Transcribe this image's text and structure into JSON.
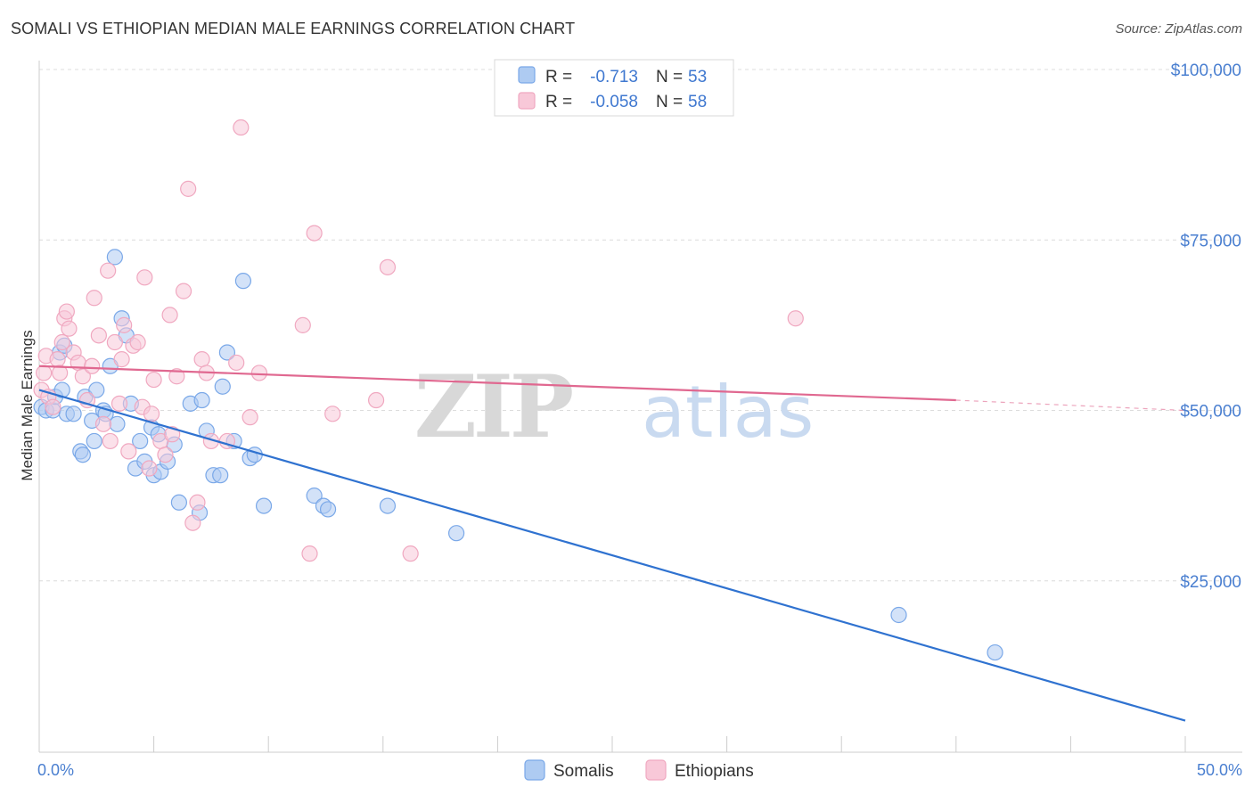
{
  "title": "SOMALI VS ETHIOPIAN MEDIAN MALE EARNINGS CORRELATION CHART",
  "source": "Source: ZipAtlas.com",
  "watermark": {
    "zip": "ZIP",
    "atlas": "atlas"
  },
  "chart_data": {
    "type": "scatter",
    "title": "SOMALI VS ETHIOPIAN MEDIAN MALE EARNINGS CORRELATION CHART",
    "xlabel": "",
    "ylabel": "Median Male Earnings",
    "xlim": [
      0,
      50
    ],
    "ylim": [
      0,
      105000
    ],
    "x_tick_labels": [
      "0.0%",
      "50.0%"
    ],
    "y_ticks": [
      25000,
      50000,
      75000,
      100000
    ],
    "y_tick_labels": [
      "$25,000",
      "$50,000",
      "$75,000",
      "$100,000"
    ],
    "grid": true,
    "legend": {
      "position": "top-center",
      "entries": [
        {
          "r_label": "R =",
          "r_value": "-0.713",
          "n_label": "N =",
          "n_value": "53"
        },
        {
          "r_label": "R =",
          "r_value": "-0.058",
          "n_label": "N =",
          "n_value": "58"
        }
      ]
    },
    "series": [
      {
        "name": "Somalis",
        "color": "#7aa8e8",
        "fill": "#aecbf2",
        "line_color": "#2f72d0",
        "trend": {
          "x": [
            0,
            50
          ],
          "y": [
            53000,
            4500
          ]
        },
        "points": [
          [
            0.1,
            50500
          ],
          [
            0.3,
            50000
          ],
          [
            0.6,
            50000
          ],
          [
            0.7,
            52000
          ],
          [
            0.9,
            58500
          ],
          [
            1.0,
            53000
          ],
          [
            1.1,
            59500
          ],
          [
            1.2,
            49500
          ],
          [
            1.5,
            49500
          ],
          [
            1.8,
            44000
          ],
          [
            1.9,
            43500
          ],
          [
            2.0,
            52000
          ],
          [
            2.3,
            48500
          ],
          [
            2.4,
            45500
          ],
          [
            2.5,
            53000
          ],
          [
            2.8,
            50000
          ],
          [
            2.9,
            49500
          ],
          [
            3.1,
            56500
          ],
          [
            3.3,
            72500
          ],
          [
            3.4,
            48000
          ],
          [
            3.6,
            63500
          ],
          [
            3.8,
            61000
          ],
          [
            4.0,
            51000
          ],
          [
            4.2,
            41500
          ],
          [
            4.4,
            45500
          ],
          [
            4.6,
            42500
          ],
          [
            4.9,
            47500
          ],
          [
            5.0,
            40500
          ],
          [
            5.2,
            46500
          ],
          [
            5.3,
            41000
          ],
          [
            5.6,
            42500
          ],
          [
            5.9,
            45000
          ],
          [
            6.1,
            36500
          ],
          [
            6.6,
            51000
          ],
          [
            7.0,
            35000
          ],
          [
            7.1,
            51500
          ],
          [
            7.3,
            47000
          ],
          [
            7.6,
            40500
          ],
          [
            7.9,
            40500
          ],
          [
            8.0,
            53500
          ],
          [
            8.2,
            58500
          ],
          [
            8.5,
            45500
          ],
          [
            8.9,
            69000
          ],
          [
            9.2,
            43000
          ],
          [
            9.4,
            43500
          ],
          [
            9.8,
            36000
          ],
          [
            12.0,
            37500
          ],
          [
            12.4,
            36000
          ],
          [
            12.6,
            35500
          ],
          [
            15.2,
            36000
          ],
          [
            18.2,
            32000
          ],
          [
            37.5,
            20000
          ],
          [
            41.7,
            14500
          ]
        ]
      },
      {
        "name": "Ethiopians",
        "color": "#f0a8c0",
        "fill": "#f8c8d8",
        "line_color": "#e06890",
        "trend": {
          "x": [
            0,
            40
          ],
          "y": [
            56500,
            51500
          ],
          "dashed_to": {
            "x": 50,
            "y": 50000
          }
        },
        "points": [
          [
            0.1,
            53000
          ],
          [
            0.2,
            55500
          ],
          [
            0.3,
            58000
          ],
          [
            0.4,
            52000
          ],
          [
            0.6,
            50500
          ],
          [
            0.8,
            57500
          ],
          [
            0.9,
            55500
          ],
          [
            1.0,
            60000
          ],
          [
            1.1,
            63500
          ],
          [
            1.2,
            64500
          ],
          [
            1.3,
            62000
          ],
          [
            1.5,
            58500
          ],
          [
            1.7,
            57000
          ],
          [
            1.9,
            55000
          ],
          [
            2.1,
            51500
          ],
          [
            2.3,
            56500
          ],
          [
            2.4,
            66500
          ],
          [
            2.6,
            61000
          ],
          [
            2.8,
            48000
          ],
          [
            3.0,
            70500
          ],
          [
            3.1,
            45500
          ],
          [
            3.3,
            60000
          ],
          [
            3.5,
            51000
          ],
          [
            3.6,
            57500
          ],
          [
            3.7,
            62500
          ],
          [
            3.9,
            44000
          ],
          [
            4.1,
            59500
          ],
          [
            4.3,
            60000
          ],
          [
            4.5,
            50500
          ],
          [
            4.6,
            69500
          ],
          [
            4.8,
            41500
          ],
          [
            4.9,
            49500
          ],
          [
            5.0,
            54500
          ],
          [
            5.3,
            45500
          ],
          [
            5.5,
            43500
          ],
          [
            5.7,
            64000
          ],
          [
            5.8,
            46500
          ],
          [
            6.0,
            55000
          ],
          [
            6.3,
            67500
          ],
          [
            6.5,
            82500
          ],
          [
            6.7,
            33500
          ],
          [
            6.9,
            36500
          ],
          [
            7.1,
            57500
          ],
          [
            7.3,
            55500
          ],
          [
            7.5,
            45500
          ],
          [
            8.2,
            45500
          ],
          [
            8.6,
            57000
          ],
          [
            8.8,
            91500
          ],
          [
            9.2,
            49000
          ],
          [
            9.6,
            55500
          ],
          [
            11.5,
            62500
          ],
          [
            11.8,
            29000
          ],
          [
            12.0,
            76000
          ],
          [
            12.8,
            49500
          ],
          [
            14.7,
            51500
          ],
          [
            15.2,
            71000
          ],
          [
            16.2,
            29000
          ],
          [
            33.0,
            63500
          ]
        ]
      }
    ]
  }
}
